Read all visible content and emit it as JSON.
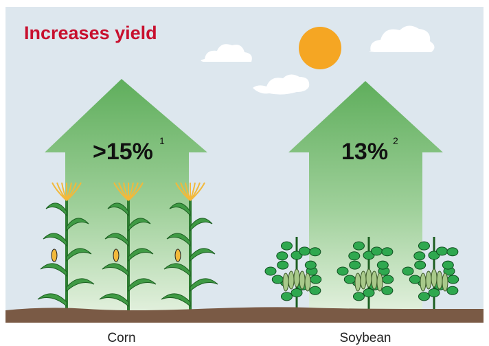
{
  "title": "Increases yield",
  "panels": [
    {
      "value_label": ">15%",
      "footnote": "1",
      "label": "Corn"
    },
    {
      "value_label": "13%",
      "footnote": "2",
      "label": "Soybean"
    }
  ]
}
